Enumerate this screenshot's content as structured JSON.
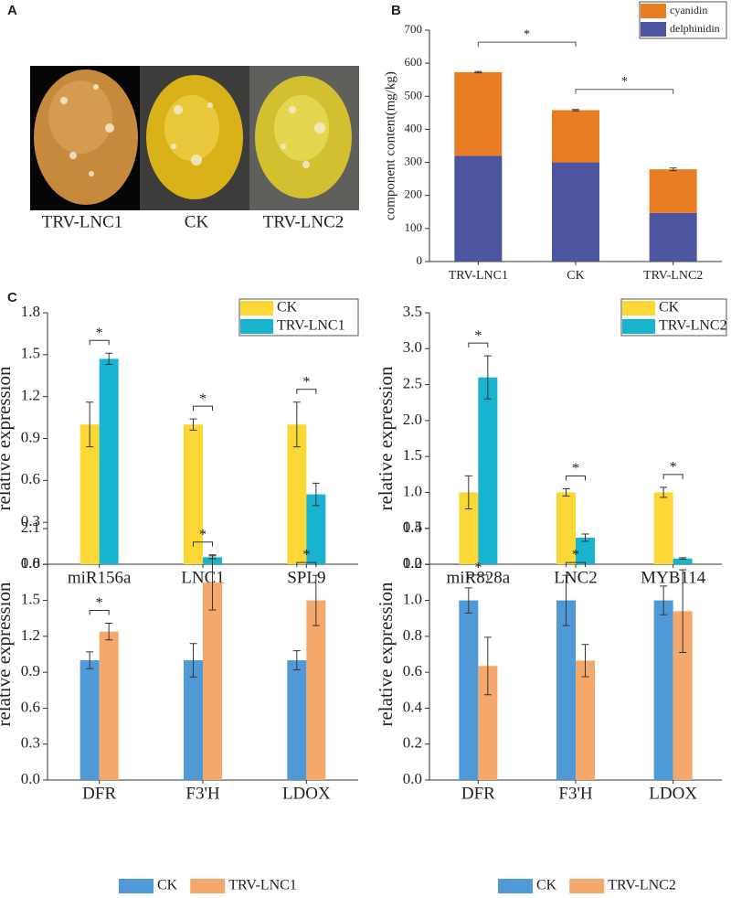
{
  "panel_labels": [
    "A",
    "B",
    "C"
  ],
  "photo": {
    "labels": [
      "TRV-LNC1",
      "CK",
      "TRV-LNC2"
    ]
  },
  "chart_data": [
    {
      "type": "stacked_bar",
      "categories": [
        "TRV-LNC1",
        "CK",
        "TRV-LNC2"
      ],
      "series": [
        {
          "name": "delphinidin",
          "color": "#4e55a0",
          "values": [
            320,
            300,
            147
          ]
        },
        {
          "name": "cyanidin",
          "color": "#e87d24",
          "values": [
            253,
            158,
            132
          ],
          "errors": [
            2,
            2,
            4
          ]
        }
      ],
      "ylabel": "component content(mg/kg)",
      "ylim": [
        0,
        700
      ],
      "yticks": [
        0,
        100,
        200,
        300,
        400,
        500,
        600,
        700
      ],
      "significance": [
        "*",
        "*"
      ],
      "legend": "top-right"
    },
    {
      "type": "bar",
      "categories": [
        "miR156a",
        "LNC1",
        "SPL9"
      ],
      "series": [
        {
          "name": "CK",
          "color": "#fcd837",
          "values": [
            1,
            1,
            1
          ],
          "errors": [
            0.16,
            0.04,
            0.16
          ]
        },
        {
          "name": "TRV-LNC1",
          "color": "#17b3cf",
          "values": [
            1.47,
            0.05,
            0.5
          ],
          "errors": [
            0.04,
            0.01,
            0.08
          ]
        }
      ],
      "ylabel": "relative expression",
      "ylim": [
        0,
        1.8
      ],
      "yticks": [
        {
          "value": 0,
          "label": "0.0"
        },
        0.3,
        0.6,
        0.9,
        1.2,
        1.5,
        1.8
      ],
      "significance": [
        "*",
        "*",
        "*"
      ],
      "legend": "top-right"
    },
    {
      "type": "bar",
      "categories": [
        "miR828a",
        "LNC2",
        "MYB114"
      ],
      "series": [
        {
          "name": "CK",
          "color": "#fcd837",
          "values": [
            1,
            1,
            1
          ],
          "errors": [
            0.23,
            0.05,
            0.07
          ]
        },
        {
          "name": "TRV-LNC2",
          "color": "#17b3cf",
          "values": [
            2.6,
            0.37,
            0.08
          ],
          "errors": [
            0.3,
            0.05,
            0.01
          ]
        }
      ],
      "ylabel": "relative expression",
      "ylim": [
        0,
        3.5
      ],
      "yticks": [
        {
          "value": 0,
          "label": "0.0"
        },
        0.5,
        {
          "value": 1,
          "label": "1.0"
        },
        1.5,
        {
          "value": 2,
          "label": "2.0"
        },
        2.5,
        {
          "value": 3,
          "label": "3.0"
        },
        3.5
      ],
      "significance": [
        "*",
        "*",
        "*"
      ],
      "legend": "top-right"
    },
    {
      "type": "bar",
      "categories": [
        "DFR",
        "F3'H",
        "LDOX"
      ],
      "series": [
        {
          "name": "CK",
          "color": "#4f9ad6",
          "values": [
            1,
            1,
            1
          ],
          "errors": [
            0.07,
            0.14,
            0.08
          ]
        },
        {
          "name": "TRV-LNC1",
          "color": "#f5a86b",
          "values": [
            1.24,
            1.65,
            1.5
          ],
          "errors": [
            0.07,
            0.23,
            0.21
          ]
        }
      ],
      "ylabel": "relative expression",
      "ylim": [
        0,
        2.1
      ],
      "yticks": [
        {
          "value": 0,
          "label": "0.0"
        },
        0.3,
        0.6,
        0.9,
        1.2,
        1.5,
        1.8,
        2.1
      ],
      "significance": [
        "*",
        "*",
        "*"
      ],
      "legend": "bottom"
    },
    {
      "type": "bar",
      "categories": [
        "DFR",
        "F3'H",
        "LDOX"
      ],
      "series": [
        {
          "name": "CK",
          "color": "#4f9ad6",
          "values": [
            1,
            1,
            1
          ],
          "errors": [
            0.07,
            0.14,
            0.08
          ]
        },
        {
          "name": "TRV-LNC2",
          "color": "#f5a86b",
          "values": [
            0.635,
            0.665,
            0.94
          ],
          "errors": [
            0.16,
            0.09,
            0.23
          ]
        }
      ],
      "ylabel": "relative expression",
      "ylim": [
        0,
        1.4
      ],
      "yticks": [
        {
          "value": 0,
          "label": "0.0"
        },
        0.2,
        0.4,
        0.6,
        0.8,
        {
          "value": 1,
          "label": "1.0"
        },
        1.2,
        1.4
      ],
      "significance": [
        "*",
        "*",
        null
      ],
      "legend": "bottom"
    }
  ]
}
